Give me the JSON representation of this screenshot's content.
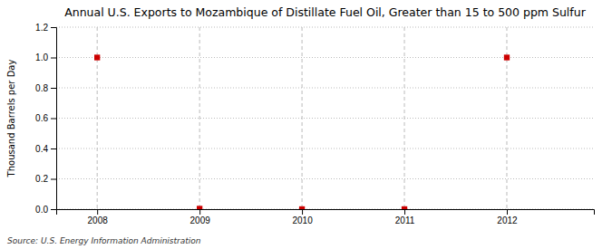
{
  "chart_data": {
    "type": "scatter",
    "title": "Annual U.S. Exports to Mozambique of Distillate Fuel Oil, Greater than 15 to 500 ppm Sulfur",
    "ylabel": "Thousand Barrels per Day",
    "annotations": [
      "Source: U.S. Energy Information Administration"
    ],
    "x": [
      2008,
      2009,
      2010,
      2011,
      2012
    ],
    "values": [
      1.0,
      0.003,
      0.0,
      0.0,
      1.0
    ],
    "color": "#CC0000",
    "marker": "square",
    "xlim": [
      2007.6,
      2012.85
    ],
    "xticks": [
      2008,
      2009,
      2010,
      2011,
      2012
    ],
    "ylim": [
      0.0,
      1.2
    ],
    "yticks": [
      {
        "value": 0.0,
        "label": "0.0"
      },
      {
        "value": 0.2,
        "label": "0.2"
      },
      {
        "value": 0.4,
        "label": "0.4"
      },
      {
        "value": 0.6,
        "label": "0.6"
      },
      {
        "value": 0.8,
        "label": "0.8"
      },
      {
        "value": 1.0,
        "label": "1.0"
      },
      {
        "value": 1.2,
        "label": "1.2"
      }
    ],
    "grid": true
  }
}
